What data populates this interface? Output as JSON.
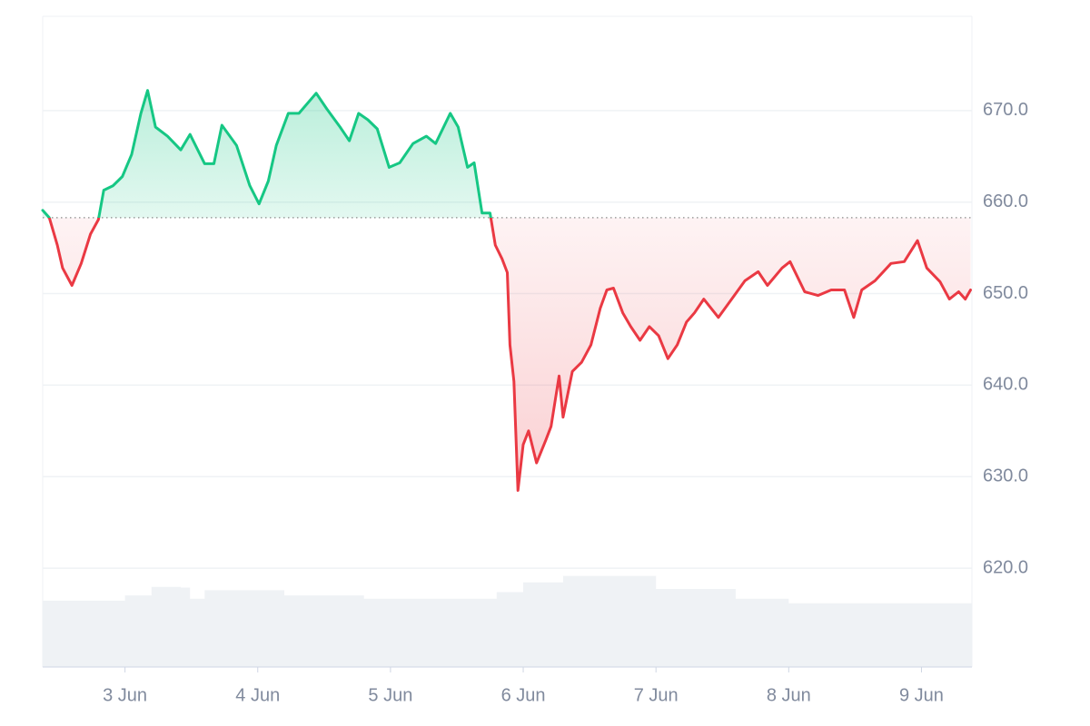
{
  "chart_data": {
    "type": "line",
    "x": [
      2.38,
      2.43,
      2.49,
      2.53,
      2.6,
      2.67,
      2.74,
      2.8,
      2.84,
      2.91,
      2.98,
      3.05,
      3.12,
      3.17,
      3.23,
      3.32,
      3.42,
      3.49,
      3.6,
      3.67,
      3.73,
      3.84,
      3.94,
      4.01,
      4.08,
      4.14,
      4.23,
      4.31,
      4.44,
      4.52,
      4.62,
      4.69,
      4.76,
      4.83,
      4.9,
      4.99,
      5.07,
      5.17,
      5.27,
      5.34,
      5.45,
      5.51,
      5.58,
      5.63,
      5.69,
      5.75,
      5.79,
      5.84,
      5.88,
      5.9,
      5.93,
      5.96,
      6.0,
      6.04,
      6.1,
      6.17,
      6.21,
      6.27,
      6.3,
      6.37,
      6.44,
      6.51,
      6.58,
      6.63,
      6.68,
      6.75,
      6.81,
      6.88,
      6.95,
      7.02,
      7.09,
      7.16,
      7.23,
      7.29,
      7.36,
      7.47,
      7.57,
      7.67,
      7.77,
      7.84,
      7.95,
      8.01,
      8.12,
      8.22,
      8.32,
      8.42,
      8.49,
      8.55,
      8.65,
      8.77,
      8.87,
      8.97,
      9.04,
      9.14,
      9.21,
      9.28,
      9.33,
      9.37
    ],
    "values": [
      659.1,
      658.3,
      655.3,
      652.8,
      650.9,
      653.3,
      656.5,
      658.1,
      661.3,
      661.8,
      662.8,
      665.2,
      669.7,
      672.2,
      668.2,
      667.2,
      665.7,
      667.4,
      664.2,
      664.2,
      668.4,
      666.2,
      661.8,
      659.8,
      662.3,
      666.2,
      669.7,
      669.7,
      671.9,
      670.2,
      668.2,
      666.7,
      669.7,
      669.0,
      668.0,
      663.8,
      664.3,
      666.4,
      667.2,
      666.4,
      669.7,
      668.2,
      663.8,
      664.3,
      658.8,
      658.8,
      655.3,
      653.8,
      652.3,
      644.4,
      640.4,
      628.5,
      633.5,
      635.0,
      631.5,
      634.0,
      635.5,
      641.0,
      636.5,
      641.5,
      642.5,
      644.4,
      648.4,
      650.4,
      650.6,
      647.9,
      646.4,
      644.9,
      646.4,
      645.4,
      642.9,
      644.4,
      646.9,
      647.9,
      649.4,
      647.4,
      649.4,
      651.4,
      652.4,
      650.9,
      652.8,
      653.5,
      650.2,
      649.8,
      650.4,
      650.4,
      647.4,
      650.4,
      651.4,
      653.3,
      653.5,
      655.8,
      652.8,
      651.3,
      649.4,
      650.2,
      649.4,
      650.4
    ],
    "baseline": 658.3,
    "up_color": "#16c784",
    "down_color": "#ea3943",
    "xlim": [
      2.38,
      9.38
    ],
    "xticks": [
      {
        "value": 3,
        "label": "3 Jun"
      },
      {
        "value": 4,
        "label": "4 Jun"
      },
      {
        "value": 5,
        "label": "5 Jun"
      },
      {
        "value": 6,
        "label": "6 Jun"
      },
      {
        "value": 7,
        "label": "7 Jun"
      },
      {
        "value": 8,
        "label": "8 Jun"
      },
      {
        "value": 9,
        "label": "9 Jun"
      }
    ],
    "ylim": [
      609.2,
      680.3
    ],
    "yticks": [
      {
        "value": 620,
        "label": "620.0"
      },
      {
        "value": 630,
        "label": "630.0"
      },
      {
        "value": 640,
        "label": "640.0"
      },
      {
        "value": 650,
        "label": "650.0"
      },
      {
        "value": 660,
        "label": "660.0"
      },
      {
        "value": 670,
        "label": "670.0"
      }
    ],
    "grid": true,
    "volume": {
      "x": [
        2.38,
        3.0,
        3.2,
        3.42,
        3.49,
        3.6,
        4.2,
        4.8,
        5.4,
        5.8,
        6.0,
        6.3,
        6.9,
        7.0,
        7.6,
        8.0,
        9.38
      ],
      "values": [
        10.2,
        11,
        12.3,
        12.2,
        10.5,
        11.8,
        11,
        10.5,
        10.5,
        11.5,
        13,
        14,
        14,
        12,
        10.5,
        9.8,
        9.5
      ],
      "color": "#eff2f5",
      "y2lim": [
        0,
        100
      ]
    }
  }
}
